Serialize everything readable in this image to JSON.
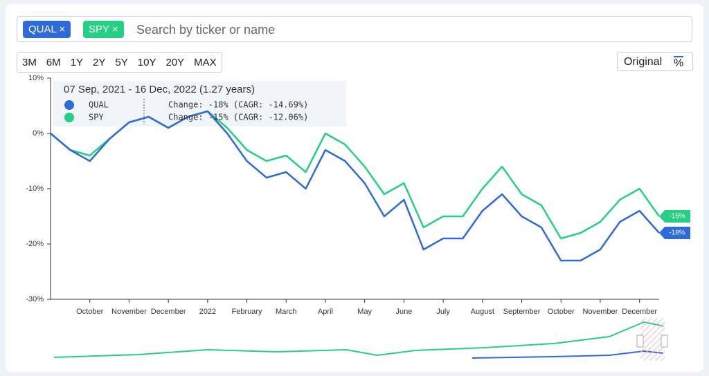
{
  "ui": {
    "search_placeholder": "Search by ticker or name",
    "remove_label": "×",
    "ranges": [
      "3M",
      "6M",
      "1Y",
      "2Y",
      "5Y",
      "10Y",
      "20Y",
      "MAX"
    ],
    "mode_original": "Original",
    "mode_percent": "%"
  },
  "chart_data": {
    "type": "line",
    "tooltip": {
      "period": "07 Sep, 2021 - 16 Dec, 2022 (1.27 years)",
      "rows": [
        "Change: -18% (CAGR: -14.69%)",
        "Change: -15% (CAGR: -12.06%)"
      ]
    },
    "categories": [
      null,
      null,
      "October",
      null,
      "November",
      null,
      "December",
      null,
      "2022",
      null,
      "February",
      null,
      "March",
      null,
      "April",
      null,
      "May",
      null,
      "June",
      null,
      "July",
      null,
      "August",
      null,
      "September",
      null,
      "October",
      null,
      "November",
      null,
      "December",
      null
    ],
    "series": [
      {
        "name": "QUAL",
        "color": "#2e6bd9",
        "end_label": "-18%",
        "values": [
          0,
          -3,
          -5,
          -1,
          2,
          3,
          1,
          3,
          4,
          0,
          -5,
          -8,
          -7,
          -10,
          -3,
          -5,
          -9,
          -15,
          -12,
          -21,
          -19,
          -19,
          -14,
          -11,
          -15,
          -17,
          -23,
          -23,
          -21,
          -16,
          -14,
          -18
        ]
      },
      {
        "name": "SPY",
        "color": "#25cf84",
        "end_label": "-15%",
        "values": [
          0,
          -3,
          -4,
          -1,
          2,
          3,
          1,
          3,
          4,
          1,
          -3,
          -5,
          -4,
          -7,
          0,
          -2,
          -6,
          -11,
          -9,
          -17,
          -15,
          -15,
          -10,
          -6,
          -11,
          -13,
          -19,
          -18,
          -16,
          -12,
          -10,
          -15
        ]
      }
    ],
    "ylim": [
      -30,
      10
    ],
    "yticks": [
      {
        "value": -30,
        "label": "-30%"
      },
      {
        "value": -20,
        "label": "-20%"
      },
      {
        "value": -10,
        "label": "-10%"
      },
      {
        "value": 0,
        "label": "0%"
      },
      {
        "value": 10,
        "label": "10%"
      }
    ]
  }
}
